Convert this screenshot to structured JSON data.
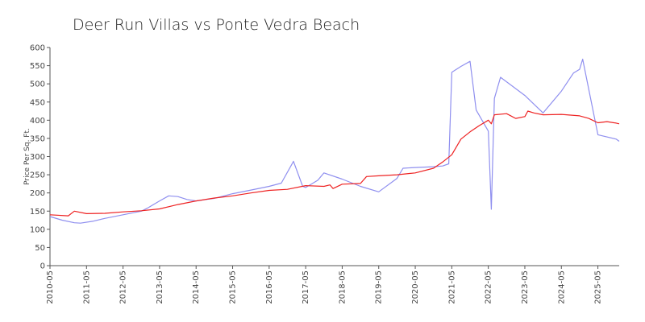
{
  "chart_data": {
    "type": "line",
    "title": "Deer Run Villas vs Ponte Vedra Beach",
    "ylabel": "Price Per Sq. Ft.",
    "xlabel": "",
    "ylim": [
      0,
      600
    ],
    "y_ticks": [
      0,
      50,
      100,
      150,
      200,
      250,
      300,
      350,
      400,
      450,
      500,
      550,
      600
    ],
    "x_ticks": [
      "2010-05",
      "2011-05",
      "2012-05",
      "2013-05",
      "2014-05",
      "2015-05",
      "2016-05",
      "2017-05",
      "2018-05",
      "2019-05",
      "2020-05",
      "2021-05",
      "2022-05",
      "2023-05",
      "2024-05",
      "2025-05"
    ],
    "grid": false,
    "legend": "none",
    "series": [
      {
        "color": "#8f8fef",
        "points": [
          [
            "2010-05",
            135
          ],
          [
            "2010-09",
            125
          ],
          [
            "2011-01",
            118
          ],
          [
            "2011-03",
            117
          ],
          [
            "2011-07",
            122
          ],
          [
            "2011-11",
            130
          ],
          [
            "2012-05",
            140
          ],
          [
            "2012-11",
            150
          ],
          [
            "2013-01",
            158
          ],
          [
            "2013-05",
            178
          ],
          [
            "2013-08",
            192
          ],
          [
            "2013-11",
            190
          ],
          [
            "2014-02",
            182
          ],
          [
            "2014-05",
            178
          ],
          [
            "2014-11",
            185
          ],
          [
            "2015-05",
            198
          ],
          [
            "2015-11",
            208
          ],
          [
            "2016-05",
            218
          ],
          [
            "2016-09",
            227
          ],
          [
            "2017-01",
            287
          ],
          [
            "2017-04",
            218
          ],
          [
            "2017-05",
            215
          ],
          [
            "2017-09",
            235
          ],
          [
            "2017-11",
            255
          ],
          [
            "2018-05",
            238
          ],
          [
            "2018-11",
            218
          ],
          [
            "2019-05",
            203
          ],
          [
            "2019-11",
            240
          ],
          [
            "2020-01",
            268
          ],
          [
            "2020-05",
            270
          ],
          [
            "2020-11",
            272
          ],
          [
            "2021-02",
            274
          ],
          [
            "2021-04",
            280
          ],
          [
            "2021-05",
            532
          ],
          [
            "2021-08",
            548
          ],
          [
            "2021-11",
            562
          ],
          [
            "2022-01",
            428
          ],
          [
            "2022-05",
            370
          ],
          [
            "2022-06",
            155
          ],
          [
            "2022-07",
            460
          ],
          [
            "2022-09",
            518
          ],
          [
            "2023-05",
            468
          ],
          [
            "2023-11",
            420
          ],
          [
            "2024-05",
            480
          ],
          [
            "2024-09",
            530
          ],
          [
            "2024-11",
            540
          ],
          [
            "2024-12",
            568
          ],
          [
            "2025-05",
            360
          ],
          [
            "2025-11",
            348
          ],
          [
            "2025-12",
            342
          ]
        ]
      },
      {
        "color": "#ee2222",
        "points": [
          [
            "2010-05",
            140
          ],
          [
            "2010-11",
            137
          ],
          [
            "2011-01",
            150
          ],
          [
            "2011-05",
            143
          ],
          [
            "2011-11",
            144
          ],
          [
            "2012-05",
            148
          ],
          [
            "2012-11",
            151
          ],
          [
            "2013-05",
            156
          ],
          [
            "2013-11",
            168
          ],
          [
            "2014-05",
            178
          ],
          [
            "2014-11",
            186
          ],
          [
            "2015-05",
            192
          ],
          [
            "2015-11",
            200
          ],
          [
            "2016-05",
            207
          ],
          [
            "2016-11",
            210
          ],
          [
            "2017-05",
            220
          ],
          [
            "2017-11",
            218
          ],
          [
            "2018-01",
            222
          ],
          [
            "2018-02",
            212
          ],
          [
            "2018-05",
            224
          ],
          [
            "2018-11",
            226
          ],
          [
            "2019-01",
            245
          ],
          [
            "2019-05",
            247
          ],
          [
            "2019-11",
            250
          ],
          [
            "2020-05",
            255
          ],
          [
            "2020-11",
            268
          ],
          [
            "2021-02",
            285
          ],
          [
            "2021-05",
            305
          ],
          [
            "2021-08",
            348
          ],
          [
            "2021-11",
            368
          ],
          [
            "2022-02",
            385
          ],
          [
            "2022-05",
            400
          ],
          [
            "2022-06",
            390
          ],
          [
            "2022-07",
            415
          ],
          [
            "2022-11",
            418
          ],
          [
            "2023-02",
            405
          ],
          [
            "2023-05",
            410
          ],
          [
            "2023-06",
            425
          ],
          [
            "2023-08",
            420
          ],
          [
            "2023-11",
            415
          ],
          [
            "2024-05",
            416
          ],
          [
            "2024-11",
            412
          ],
          [
            "2025-02",
            405
          ],
          [
            "2025-05",
            393
          ],
          [
            "2025-08",
            396
          ],
          [
            "2025-11",
            392
          ],
          [
            "2025-12",
            390
          ]
        ]
      }
    ]
  }
}
